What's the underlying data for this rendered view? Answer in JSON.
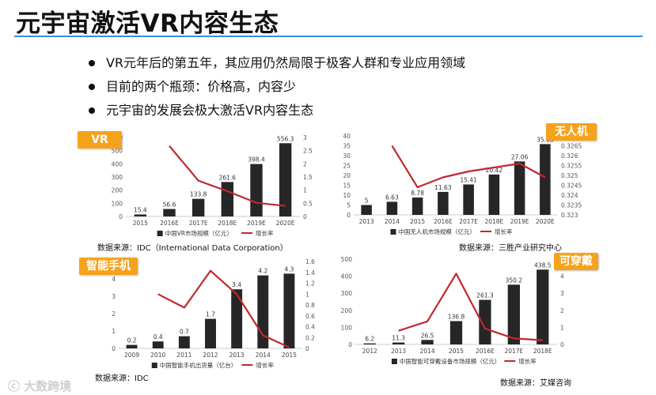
{
  "title": "元宇宙激活VR内容生态",
  "bullets": [
    "VR元年后的第五年，其应用仍然局限于极客人群和专业应用领域",
    "目前的两个瓶颈：价格高，内容少",
    "元宇宙的发展会极大激活VR内容生态"
  ],
  "colors": {
    "bar": "#262626",
    "line": "#c0282d",
    "tag": "#f7a21b",
    "rule": "#3a8fd6"
  },
  "watermark": "大数跨境",
  "charts": [
    {
      "tag": "VR",
      "source": "数据来源：IDC（International Data Corporation）",
      "chart_data": {
        "type": "bar",
        "categories": [
          "2015",
          "2016E",
          "2017E",
          "2018E",
          "2019E",
          "2020E"
        ],
        "series": [
          {
            "name": "中国VR市场规模（亿元）",
            "type": "bar",
            "axis": "left",
            "values": [
              15.4,
              56.6,
              133.8,
              261.6,
              398.4,
              556.3
            ]
          },
          {
            "name": "增长率",
            "type": "line",
            "axis": "right",
            "values": [
              null,
              2.68,
              1.36,
              0.96,
              0.52,
              0.4
            ]
          }
        ],
        "data_labels": [
          "15.4",
          "56.6",
          "133.8",
          "261.6",
          "398.4",
          "556.3"
        ],
        "ylim": [
          0,
          600
        ],
        "yticks": [
          0,
          100,
          200,
          300,
          400,
          500,
          600
        ],
        "y2lim": [
          0,
          3
        ],
        "y2ticks": [
          "0",
          "0.5",
          "1",
          "1.5",
          "2",
          "2.5",
          "3"
        ],
        "legend": "bottom"
      }
    },
    {
      "tag": "无人机",
      "source": "数据来源：三胜产业研究中心",
      "chart_data": {
        "type": "bar",
        "categories": [
          "2013",
          "2014",
          "2015",
          "2016E",
          "2017E",
          "2018E",
          "2019E",
          "2020E"
        ],
        "series": [
          {
            "name": "中国无人机市场规模（亿元）",
            "type": "bar",
            "axis": "left",
            "values": [
              5,
              6.63,
              8.78,
              11.63,
              15.41,
              20.42,
              27.06,
              35.85
            ]
          },
          {
            "name": "增长率",
            "type": "line",
            "axis": "right",
            "values": [
              null,
              0.3265,
              0.3244,
              0.3249,
              0.3252,
              0.3254,
              0.3256,
              0.3249
            ]
          }
        ],
        "data_labels": [
          "5",
          "6.63",
          "8.78",
          "11.63",
          "15.41",
          "20.42",
          "27.06",
          "35.85"
        ],
        "ylim": [
          0,
          40
        ],
        "yticks": [
          0,
          5,
          10,
          15,
          20,
          25,
          30,
          35,
          40
        ],
        "y2lim": [
          0.323,
          0.327
        ],
        "y2ticks": [
          "0.323",
          "0.3235",
          "0.324",
          "0.3245",
          "0.325",
          "0.3255",
          "0.326",
          "0.3265",
          "0.327"
        ],
        "legend": "bottom"
      }
    },
    {
      "tag": "智能手机",
      "source": "数据来源：IDC",
      "chart_data": {
        "type": "bar",
        "categories": [
          "2009",
          "2010",
          "2011",
          "2012",
          "2013",
          "2014",
          "2015"
        ],
        "series": [
          {
            "name": "中国智能手机出货量（亿台）",
            "type": "bar",
            "axis": "left",
            "values": [
              0.2,
              0.4,
              0.7,
              1.7,
              3.4,
              4.2,
              4.3
            ]
          },
          {
            "name": "增长率",
            "type": "line",
            "axis": "right",
            "values": [
              null,
              1.0,
              0.75,
              1.43,
              1.0,
              0.24,
              0.02
            ]
          }
        ],
        "data_labels": [
          "0.2",
          "0.4",
          "0.7",
          "1.7",
          "3.4",
          "4.2",
          "4.3"
        ],
        "ylim": [
          0,
          5
        ],
        "yticks": [
          0,
          1,
          2,
          3,
          4,
          5
        ],
        "y2lim": [
          0,
          1.6
        ],
        "y2ticks": [
          "0",
          "0.2",
          "0.4",
          "0.6",
          "0.8",
          "1",
          "1.2",
          "1.4",
          "1.6"
        ],
        "legend": "bottom"
      }
    },
    {
      "tag": "可穿戴",
      "source": "数据来源：艾媒咨询",
      "chart_data": {
        "type": "bar",
        "categories": [
          "2012",
          "2013",
          "2014",
          "2015",
          "2016E",
          "2017E",
          "2018E"
        ],
        "series": [
          {
            "name": "中国智能可穿戴设备市场规模（亿元）",
            "type": "bar",
            "axis": "left",
            "values": [
              6.2,
              11.3,
              26.5,
              136.8,
              261.3,
              350.2,
              438.5
            ]
          },
          {
            "name": "增长率",
            "type": "line",
            "axis": "right",
            "values": [
              null,
              0.8,
              1.35,
              4.15,
              0.93,
              0.35,
              0.25
            ]
          }
        ],
        "data_labels": [
          "6.2",
          "11.3",
          "26.5",
          "136.8",
          "261.3",
          "350.2",
          "438.5"
        ],
        "ylim": [
          0,
          500
        ],
        "yticks": [
          0,
          100,
          200,
          300,
          400,
          500
        ],
        "y2lim": [
          0,
          5
        ],
        "y2ticks": [
          "0",
          "1",
          "2",
          "3",
          "4",
          "5"
        ],
        "legend": "bottom"
      }
    }
  ]
}
